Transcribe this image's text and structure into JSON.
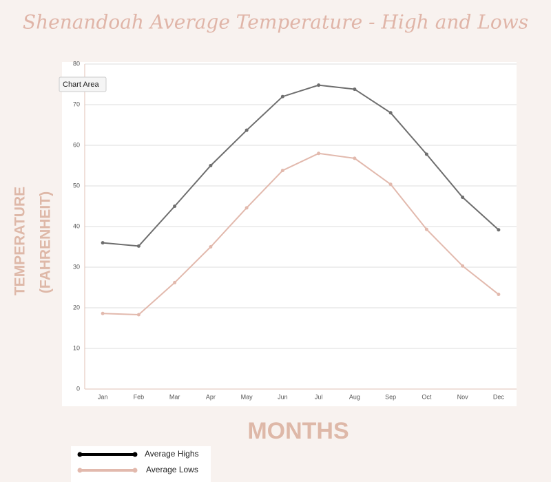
{
  "chart_data": {
    "type": "line",
    "title": "Shenandoah Average Temperature - High and Lows",
    "ylabel": [
      "TEMPERATURE",
      "(FAHRENHEIT)"
    ],
    "xlabel": "MONTHS",
    "annotation": "Chart Area",
    "categories": [
      "Jan",
      "Feb",
      "Mar",
      "Apr",
      "May",
      "Jun",
      "Jul",
      "Aug",
      "Sep",
      "Oct",
      "Nov",
      "Dec"
    ],
    "series": [
      {
        "name": "Average Highs",
        "color": "#6e6e6e",
        "values": [
          36,
          35.2,
          45,
          55,
          63.7,
          72,
          74.8,
          73.8,
          68,
          57.8,
          47.2,
          39.2
        ]
      },
      {
        "name": "Average Lows",
        "color": "#e2b9ad",
        "values": [
          18.6,
          18.3,
          26.2,
          35,
          44.6,
          53.8,
          58,
          56.8,
          50.4,
          39.3,
          30.3,
          23.3
        ]
      }
    ],
    "legend_colors": [
      "#000000",
      "#e2b9ad"
    ],
    "ylim": [
      0,
      80
    ],
    "yticks": [
      0,
      10,
      20,
      30,
      40,
      50,
      60,
      70,
      80
    ],
    "grid": true
  }
}
